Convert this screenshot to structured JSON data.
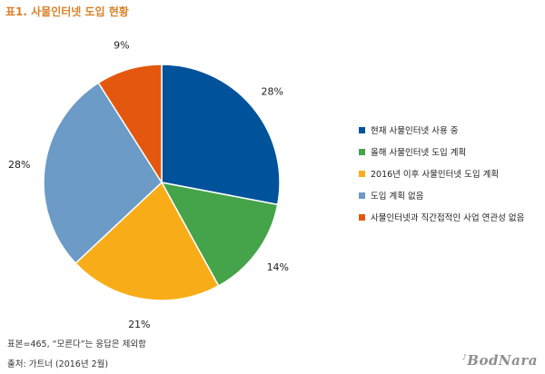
{
  "header": {
    "title": "표1. 사물인터넷 도입 현황"
  },
  "chart_data": {
    "type": "pie",
    "title": "표1. 사물인터넷 도입 현황",
    "legend_position": "right",
    "slices": [
      {
        "label": "현재 사물인터넷 사용 중",
        "value": 28,
        "value_label": "28%",
        "color": "#00529b"
      },
      {
        "label": "올해 사물인터넷 도입 계획",
        "value": 14,
        "value_label": "14%",
        "color": "#45a34a"
      },
      {
        "label": "2016년 이후 사물인터넷 도입 계획",
        "value": 21,
        "value_label": "21%",
        "color": "#f8ad18"
      },
      {
        "label": "도입 계획 없음",
        "value": 28,
        "value_label": "28%",
        "color": "#6b9bc6"
      },
      {
        "label": "사물인터넷과 직간접적인 사업 연관성 없음",
        "value": 9,
        "value_label": "9%",
        "color": "#e3580e"
      }
    ]
  },
  "notes": {
    "base": "표본=465, “모른다”는 응답은 제외함",
    "source": "출처: 가트너 (2016년 2월)"
  },
  "logo": {
    "text": "BodNara",
    "mark": "♪"
  }
}
